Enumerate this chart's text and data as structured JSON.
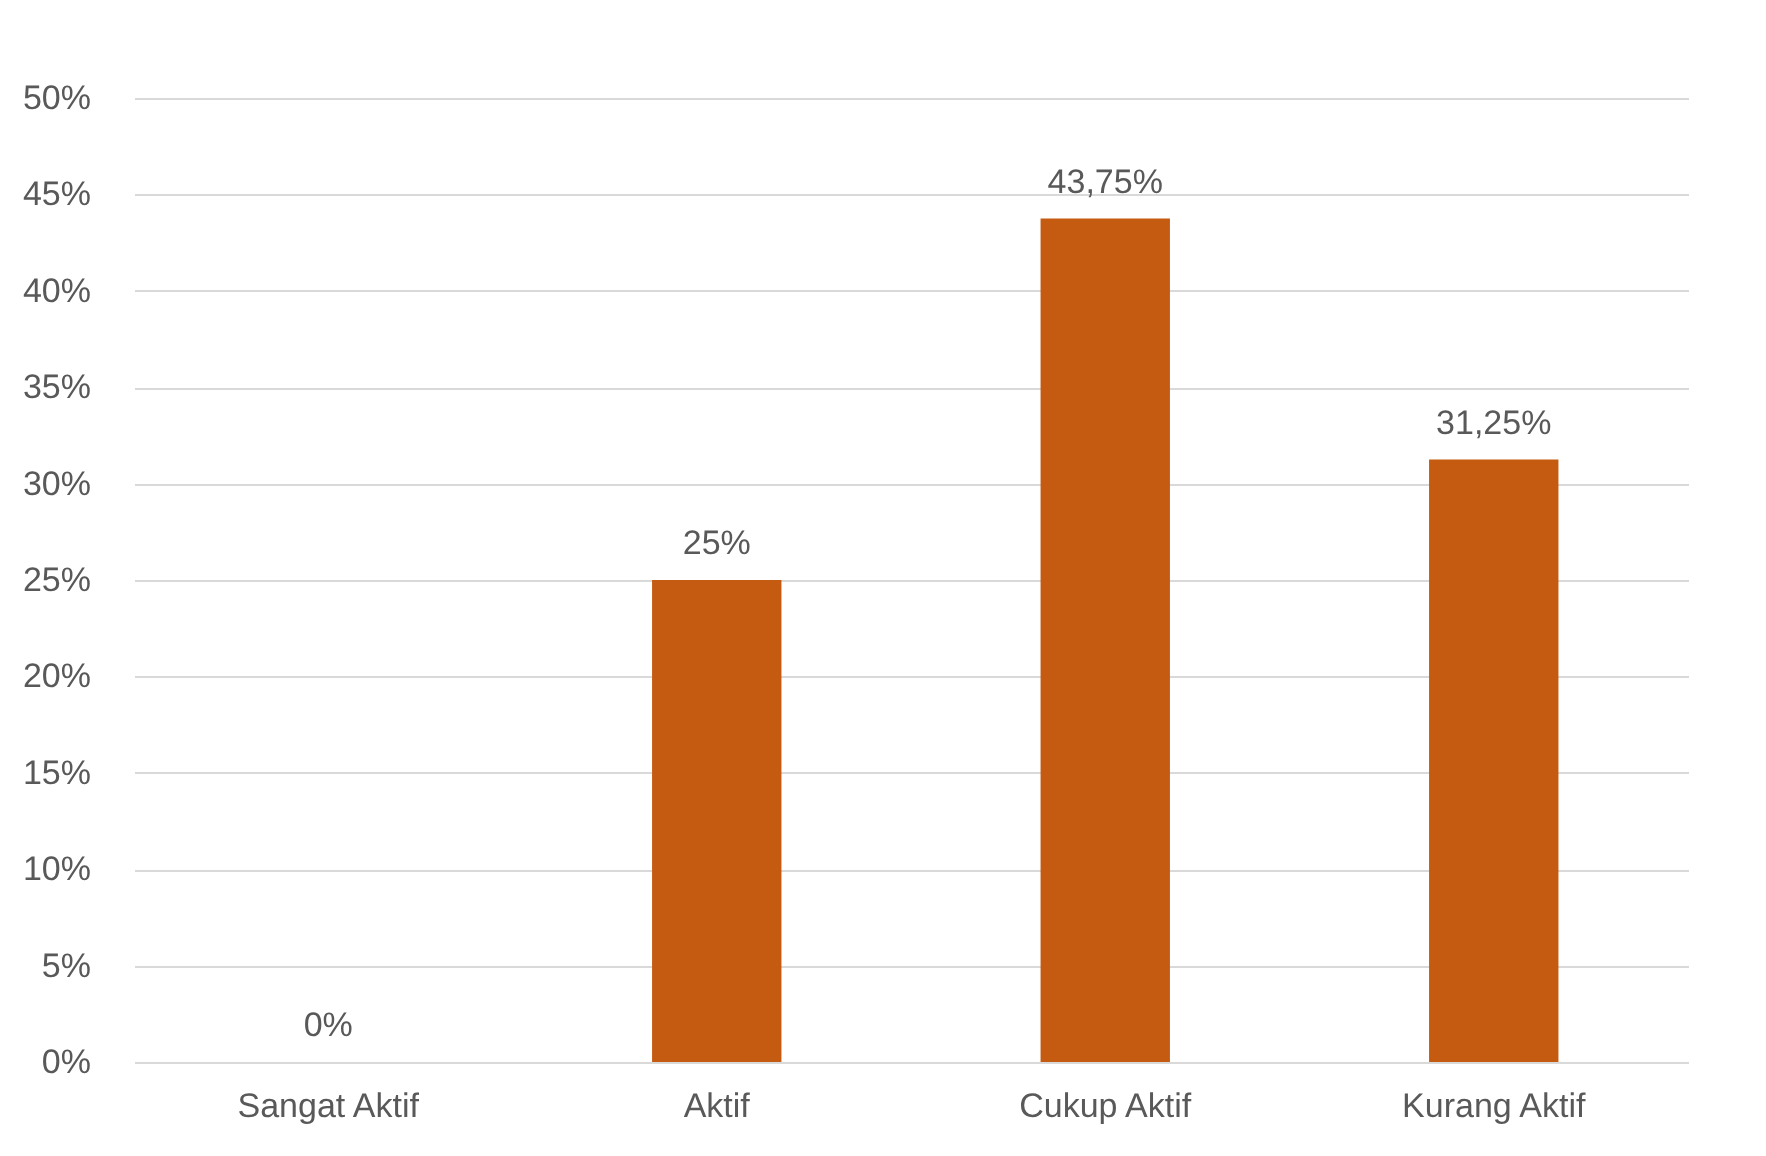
{
  "chart_data": {
    "type": "bar",
    "categories": [
      "Sangat Aktif",
      "Aktif",
      "Cukup Aktif",
      "Kurang Aktif"
    ],
    "values": [
      0,
      25,
      43.75,
      31.25
    ],
    "color": "#c55a11",
    "value_labels": [
      "0%",
      "25%",
      "43,75%",
      "31,25%"
    ],
    "ylim": [
      0,
      50
    ],
    "yticks": [
      {
        "value": 0,
        "label": "0%"
      },
      {
        "value": 5,
        "label": "5%"
      },
      {
        "value": 10,
        "label": "10%"
      },
      {
        "value": 15,
        "label": "15%"
      },
      {
        "value": 20,
        "label": "20%"
      },
      {
        "value": 25,
        "label": "25%"
      },
      {
        "value": 30,
        "label": "30%"
      },
      {
        "value": 35,
        "label": "35%"
      },
      {
        "value": 40,
        "label": "40%"
      },
      {
        "value": 45,
        "label": "45%"
      },
      {
        "value": 50,
        "label": "50%"
      }
    ],
    "grid": "y"
  }
}
